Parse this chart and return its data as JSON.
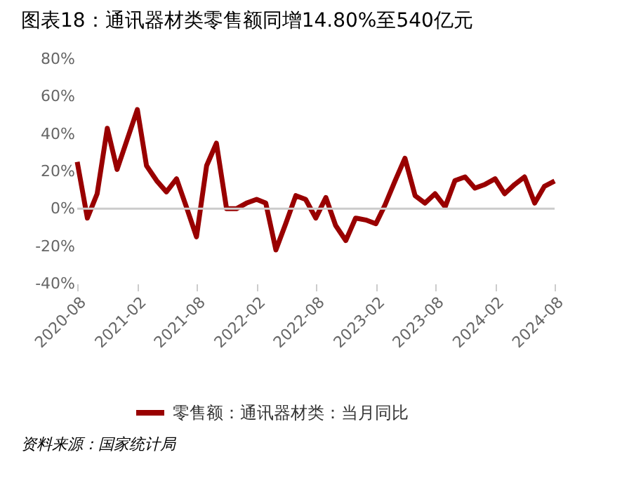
{
  "chart_data": {
    "type": "line",
    "title": "图表18：通讯器材类零售额同增14.80%至540亿元",
    "x": [
      "2020-08",
      "2020-09",
      "2020-10",
      "2020-11",
      "2020-12",
      "2021-01",
      "2021-02",
      "2021-03",
      "2021-04",
      "2021-05",
      "2021-06",
      "2021-07",
      "2021-08",
      "2021-09",
      "2021-10",
      "2021-11",
      "2021-12",
      "2022-01",
      "2022-02",
      "2022-03",
      "2022-04",
      "2022-05",
      "2022-06",
      "2022-07",
      "2022-08",
      "2022-09",
      "2022-10",
      "2022-11",
      "2022-12",
      "2023-01",
      "2023-02",
      "2023-03",
      "2023-04",
      "2023-05",
      "2023-06",
      "2023-07",
      "2023-08",
      "2023-09",
      "2023-10",
      "2023-11",
      "2023-12",
      "2024-01",
      "2024-02",
      "2024-03",
      "2024-04",
      "2024-05",
      "2024-06",
      "2024-07",
      "2024-08"
    ],
    "series": [
      {
        "name": "零售额：通讯器材类：当月同比",
        "color": "#990000",
        "values": [
          25,
          -5,
          8,
          43,
          21,
          37,
          53,
          23,
          15,
          9,
          16,
          1,
          -15,
          23,
          35,
          0,
          0,
          3,
          5,
          3,
          -22,
          -8,
          7,
          5,
          -5,
          6,
          -9,
          -17,
          -5,
          -6,
          -8,
          2,
          15,
          27,
          7,
          3,
          8,
          1,
          15,
          17,
          11,
          13,
          16,
          8,
          13,
          17,
          3,
          12,
          14.8
        ]
      }
    ],
    "xlim": [
      "2020-08",
      "2024-08"
    ],
    "xticks": [
      "2020-08",
      "2021-02",
      "2021-08",
      "2022-02",
      "2022-08",
      "2023-02",
      "2023-08",
      "2024-02",
      "2024-08"
    ],
    "ylim": [
      -40,
      80
    ],
    "yticks": [
      {
        "value": -40,
        "label": "-40%"
      },
      {
        "value": -20,
        "label": "-20%"
      },
      {
        "value": 0,
        "label": "0%"
      },
      {
        "value": 20,
        "label": "20%"
      },
      {
        "value": 40,
        "label": "40%"
      },
      {
        "value": 60,
        "label": "60%"
      },
      {
        "value": 80,
        "label": "80%"
      }
    ],
    "ref_lines": [
      {
        "axis": "y",
        "value": 0,
        "color": "#cccccc"
      }
    ],
    "grid": false,
    "legend": "bottom",
    "marker": "none",
    "line_style": "solid",
    "annotations": [
      "资料来源：国家统计局"
    ]
  }
}
